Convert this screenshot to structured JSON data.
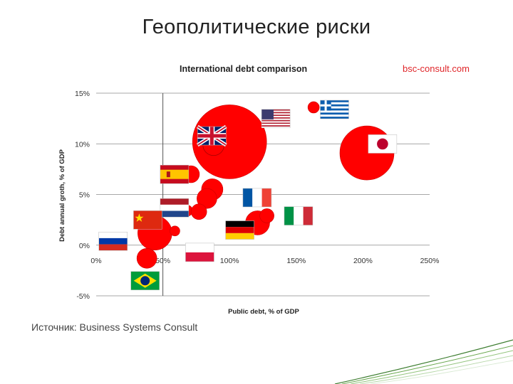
{
  "slide": {
    "title": "Геополитические риски",
    "source_label": "Источник:",
    "source_name": "Business Systems Consult"
  },
  "chart_data": {
    "type": "scatter",
    "title": "International debt comparison",
    "watermark": "bsc-consult.com",
    "xlabel": "Public debt, % of GDP",
    "ylabel": "Debt annual groth, % of GDP",
    "xlim": [
      0,
      250
    ],
    "ylim": [
      -5,
      15
    ],
    "x_ticks": [
      "0%",
      "50%",
      "100%",
      "150%",
      "200%",
      "250%"
    ],
    "y_ticks": [
      "15%",
      "10%",
      "5%",
      "0%",
      "-5%"
    ],
    "grid": true,
    "bubble_color": "#ff0000",
    "points": [
      {
        "x": 100,
        "y": 10.2,
        "size": 52,
        "flag": "USA"
      },
      {
        "x": 203,
        "y": 9.1,
        "size": 38,
        "flag": "Japan"
      },
      {
        "x": 163,
        "y": 13.6,
        "size": 8,
        "flag": "Greece"
      },
      {
        "x": 88,
        "y": 9.9,
        "size": 15,
        "flag": "UK"
      },
      {
        "x": 71,
        "y": 7.0,
        "size": 12,
        "flag": "Spain"
      },
      {
        "x": 87,
        "y": 5.5,
        "size": 15,
        "flag": "France"
      },
      {
        "x": 83,
        "y": 4.6,
        "size": 14,
        "flag": "Netherlands"
      },
      {
        "x": 68,
        "y": 3.4,
        "size": 8,
        "flag": "Netherlands"
      },
      {
        "x": 77,
        "y": 3.3,
        "size": 11,
        "flag": "Germany"
      },
      {
        "x": 121,
        "y": 2.2,
        "size": 17,
        "flag": "Italy"
      },
      {
        "x": 128,
        "y": 2.9,
        "size": 10,
        "flag": "Italy"
      },
      {
        "x": 44,
        "y": 1.2,
        "size": 24,
        "flag": "China"
      },
      {
        "x": 59,
        "y": 1.4,
        "size": 7,
        "flag": "Poland"
      },
      {
        "x": 11,
        "y": 0.3,
        "size": 7,
        "flag": "Russia"
      },
      {
        "x": 38,
        "y": -1.3,
        "size": 14,
        "flag": "Brazil"
      }
    ],
    "flags": [
      {
        "country": "Greece",
        "x": 168,
        "y": 14.3
      },
      {
        "country": "USA",
        "x": 124,
        "y": 13.4
      },
      {
        "country": "UK",
        "x": 76,
        "y": 11.7
      },
      {
        "country": "Japan",
        "x": 204,
        "y": 10.9
      },
      {
        "country": "Spain",
        "x": 48,
        "y": 7.9
      },
      {
        "country": "Netherlands",
        "x": 48,
        "y": 4.6
      },
      {
        "country": "France",
        "x": 110,
        "y": 5.6
      },
      {
        "country": "Italy",
        "x": 141,
        "y": 3.8
      },
      {
        "country": "China",
        "x": 28,
        "y": 3.4
      },
      {
        "country": "Germany",
        "x": 97,
        "y": 2.4
      },
      {
        "country": "Russia",
        "x": 2,
        "y": 1.3
      },
      {
        "country": "Poland",
        "x": 67,
        "y": 0.2
      },
      {
        "country": "Brazil",
        "x": 26,
        "y": -2.6
      }
    ]
  }
}
